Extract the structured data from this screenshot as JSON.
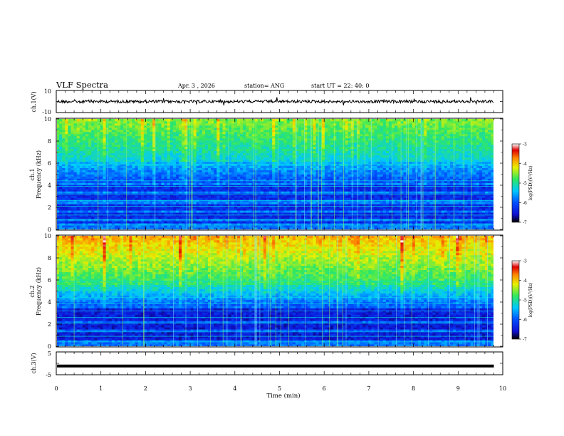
{
  "header": {
    "title": "VLF Spectra",
    "date": "Apr. 3  , 2026",
    "station": "station= ANG",
    "start": "start  UT  =   22: 40: 0"
  },
  "colorbar": {
    "label": "log(PSD)(V²/Hz)",
    "ticks": [
      "-3",
      "-4",
      "-5",
      "-6",
      "-7"
    ],
    "colors": [
      "#000000",
      "#1010d0",
      "#0050ff",
      "#00c8ff",
      "#30e860",
      "#e8f000",
      "#ff8800",
      "#e00000",
      "#ffffff"
    ]
  },
  "chart_data": [
    {
      "name": "ch1-waveform",
      "type": "line",
      "ylabel": "ch.1(V)",
      "ylim": [
        -10,
        10
      ],
      "yticks": [
        "10",
        "-10"
      ],
      "trace_level_V": 0,
      "xlim": [
        0,
        10
      ]
    },
    {
      "name": "ch1-spectrogram",
      "type": "heatmap",
      "ylabel": "ch.1\nFrequency (kHz)",
      "ylabel_lines": [
        "ch.1",
        "Frequency (kHz)"
      ],
      "ylim": [
        0,
        10
      ],
      "yticks": [
        "0",
        "2",
        "4",
        "6",
        "8",
        "10"
      ],
      "xlim": [
        0,
        9.8
      ],
      "zlim": [
        -7,
        -3
      ],
      "z_label": "log(PSD)(V²/Hz)"
    },
    {
      "name": "ch2-spectrogram",
      "type": "heatmap",
      "ylabel": "ch.2\nFrequency (kHz)",
      "ylabel_lines": [
        "ch.2",
        "Frequency (kHz)"
      ],
      "ylim": [
        0,
        10
      ],
      "yticks": [
        "0",
        "2",
        "4",
        "6",
        "8",
        "10"
      ],
      "xlim": [
        0,
        9.8
      ],
      "zlim": [
        -7,
        -3
      ],
      "z_label": "log(PSD)(V²/Hz)"
    },
    {
      "name": "ch3-waveform",
      "type": "line",
      "ylabel": "ch.3(V)",
      "ylim": [
        -5,
        5
      ],
      "yticks": [
        "5",
        "-5"
      ],
      "trace_level_V": -1.2,
      "xlim": [
        0,
        10
      ]
    }
  ],
  "xaxis": {
    "label": "Time  (min)",
    "ticks": [
      "0",
      "1",
      "2",
      "3",
      "4",
      "5",
      "6",
      "7",
      "8",
      "9",
      "10"
    ],
    "range": [
      0,
      10
    ]
  }
}
